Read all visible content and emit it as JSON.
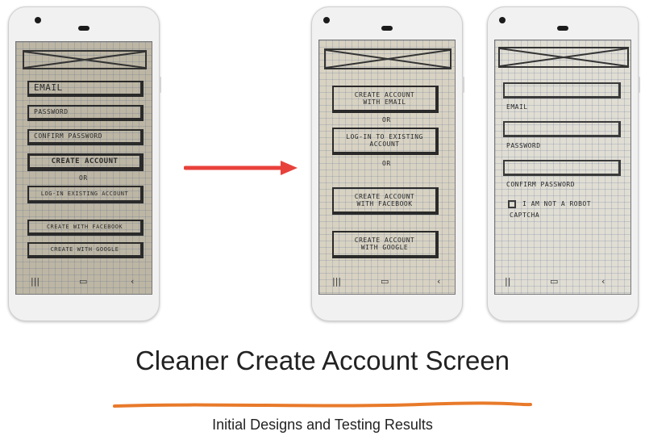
{
  "phone1": {
    "fields": [
      "EMAIL",
      "PASSWORD",
      "CONFIRM PASSWORD"
    ],
    "primary_button": "CREATE ACCOUNT",
    "or_label": "OR",
    "login_button": "LOG-IN EXISTING ACCOUNT",
    "social_buttons": [
      "CREATE WITH FACEBOOK",
      "CREATE WITH GOOGLE"
    ]
  },
  "phone2": {
    "create_email_button": "CREATE ACCOUNT WITH EMAIL",
    "or_label_1": "OR",
    "login_button": "LOG-IN TO EXISTING ACCOUNT",
    "or_label_2": "OR",
    "facebook_button": "CREATE ACCOUNT WITH FACEBOOK",
    "google_button": "CREATE ACCOUNT WITH GOOGLE"
  },
  "phone3": {
    "field_labels": [
      "EMAIL",
      "PASSWORD",
      "CONFIRM PASSWORD"
    ],
    "captcha_label_line1": "I AM NOT A ROBOT",
    "captcha_label_line2": "CAPTCHA"
  },
  "nav_icons": [
    "back-lines-icon",
    "home-rect-icon",
    "back-chevron-icon"
  ],
  "arrow_color": "#e8413b",
  "underline_color": "#e87a2a",
  "title": "Cleaner Create Account Screen",
  "subtitle": "Initial Designs and Testing Results"
}
